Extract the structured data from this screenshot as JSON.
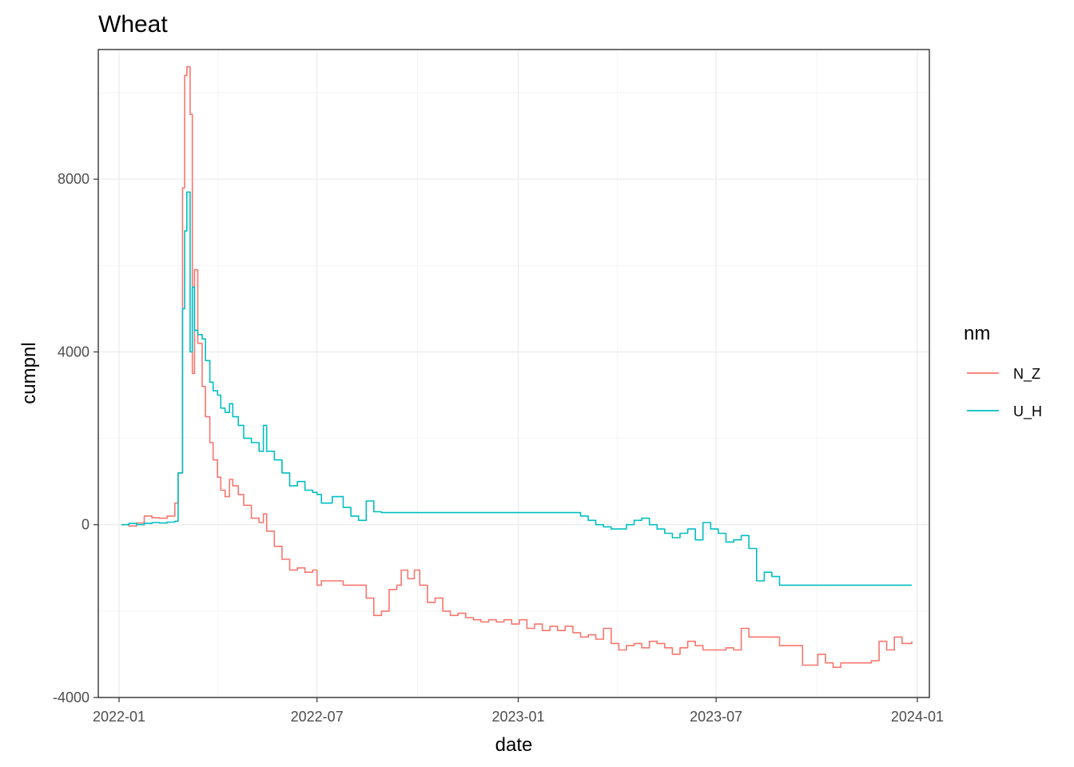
{
  "chart_data": {
    "type": "line",
    "title": "Wheat",
    "xlabel": "date",
    "ylabel": "cumpnl",
    "xlim": [
      "2021-12-13",
      "2024-01-12"
    ],
    "ylim": [
      -4000,
      11000
    ],
    "x_ticks": [
      "2022-01",
      "2022-07",
      "2023-01",
      "2023-07",
      "2024-01"
    ],
    "y_ticks": [
      -4000,
      0,
      4000,
      8000
    ],
    "grid": true,
    "legend": {
      "title": "nm",
      "position": "right"
    },
    "series": [
      {
        "name": "N_Z",
        "color": "#f8766d",
        "points": [
          [
            "2022-01-03",
            0
          ],
          [
            "2022-01-10",
            -30
          ],
          [
            "2022-01-17",
            40
          ],
          [
            "2022-01-24",
            200
          ],
          [
            "2022-01-31",
            160
          ],
          [
            "2022-02-07",
            150
          ],
          [
            "2022-02-14",
            200
          ],
          [
            "2022-02-21",
            500
          ],
          [
            "2022-02-24",
            1200
          ],
          [
            "2022-02-28",
            7800
          ],
          [
            "2022-03-02",
            10400
          ],
          [
            "2022-03-04",
            10600
          ],
          [
            "2022-03-07",
            9500
          ],
          [
            "2022-03-09",
            3500
          ],
          [
            "2022-03-11",
            5900
          ],
          [
            "2022-03-14",
            4200
          ],
          [
            "2022-03-18",
            3200
          ],
          [
            "2022-03-21",
            2500
          ],
          [
            "2022-03-25",
            1900
          ],
          [
            "2022-03-28",
            1500
          ],
          [
            "2022-04-01",
            1100
          ],
          [
            "2022-04-04",
            800
          ],
          [
            "2022-04-08",
            650
          ],
          [
            "2022-04-12",
            1050
          ],
          [
            "2022-04-15",
            900
          ],
          [
            "2022-04-20",
            700
          ],
          [
            "2022-04-25",
            450
          ],
          [
            "2022-05-02",
            150
          ],
          [
            "2022-05-09",
            50
          ],
          [
            "2022-05-13",
            250
          ],
          [
            "2022-05-16",
            -150
          ],
          [
            "2022-05-23",
            -500
          ],
          [
            "2022-05-30",
            -800
          ],
          [
            "2022-06-06",
            -1050
          ],
          [
            "2022-06-13",
            -1000
          ],
          [
            "2022-06-20",
            -1100
          ],
          [
            "2022-06-27",
            -1050
          ],
          [
            "2022-07-01",
            -1400
          ],
          [
            "2022-07-05",
            -1300
          ],
          [
            "2022-07-15",
            -1300
          ],
          [
            "2022-07-25",
            -1400
          ],
          [
            "2022-08-08",
            -1400
          ],
          [
            "2022-08-15",
            -1700
          ],
          [
            "2022-08-22",
            -2100
          ],
          [
            "2022-08-29",
            -2000
          ],
          [
            "2022-09-05",
            -1500
          ],
          [
            "2022-09-12",
            -1400
          ],
          [
            "2022-09-16",
            -1050
          ],
          [
            "2022-09-22",
            -1250
          ],
          [
            "2022-09-28",
            -1050
          ],
          [
            "2022-10-03",
            -1400
          ],
          [
            "2022-10-10",
            -1800
          ],
          [
            "2022-10-17",
            -1700
          ],
          [
            "2022-10-24",
            -2000
          ],
          [
            "2022-10-31",
            -2100
          ],
          [
            "2022-11-07",
            -2050
          ],
          [
            "2022-11-14",
            -2150
          ],
          [
            "2022-11-21",
            -2200
          ],
          [
            "2022-11-28",
            -2250
          ],
          [
            "2022-12-05",
            -2200
          ],
          [
            "2022-12-12",
            -2250
          ],
          [
            "2022-12-19",
            -2200
          ],
          [
            "2022-12-26",
            -2300
          ],
          [
            "2023-01-02",
            -2200
          ],
          [
            "2023-01-09",
            -2400
          ],
          [
            "2023-01-16",
            -2300
          ],
          [
            "2023-01-23",
            -2450
          ],
          [
            "2023-01-30",
            -2350
          ],
          [
            "2023-02-06",
            -2450
          ],
          [
            "2023-02-13",
            -2350
          ],
          [
            "2023-02-20",
            -2500
          ],
          [
            "2023-02-27",
            -2600
          ],
          [
            "2023-03-06",
            -2550
          ],
          [
            "2023-03-13",
            -2650
          ],
          [
            "2023-03-20",
            -2400
          ],
          [
            "2023-03-27",
            -2750
          ],
          [
            "2023-04-03",
            -2900
          ],
          [
            "2023-04-10",
            -2800
          ],
          [
            "2023-04-17",
            -2750
          ],
          [
            "2023-04-24",
            -2850
          ],
          [
            "2023-05-01",
            -2700
          ],
          [
            "2023-05-08",
            -2750
          ],
          [
            "2023-05-15",
            -2850
          ],
          [
            "2023-05-22",
            -3000
          ],
          [
            "2023-05-29",
            -2850
          ],
          [
            "2023-06-05",
            -2700
          ],
          [
            "2023-06-12",
            -2800
          ],
          [
            "2023-06-19",
            -2900
          ],
          [
            "2023-06-26",
            -2900
          ],
          [
            "2023-07-03",
            -2900
          ],
          [
            "2023-07-10",
            -2850
          ],
          [
            "2023-07-17",
            -2900
          ],
          [
            "2023-07-24",
            -2400
          ],
          [
            "2023-07-31",
            -2600
          ],
          [
            "2023-08-07",
            -2600
          ],
          [
            "2023-08-14",
            -2600
          ],
          [
            "2023-08-21",
            -2600
          ],
          [
            "2023-08-28",
            -2800
          ],
          [
            "2023-09-04",
            -2800
          ],
          [
            "2023-09-11",
            -2800
          ],
          [
            "2023-09-18",
            -3250
          ],
          [
            "2023-09-25",
            -3250
          ],
          [
            "2023-10-02",
            -3000
          ],
          [
            "2023-10-09",
            -3200
          ],
          [
            "2023-10-16",
            -3300
          ],
          [
            "2023-10-23",
            -3200
          ],
          [
            "2023-10-30",
            -3200
          ],
          [
            "2023-11-06",
            -3200
          ],
          [
            "2023-11-13",
            -3200
          ],
          [
            "2023-11-20",
            -3150
          ],
          [
            "2023-11-27",
            -2700
          ],
          [
            "2023-12-04",
            -2900
          ],
          [
            "2023-12-11",
            -2600
          ],
          [
            "2023-12-18",
            -2750
          ],
          [
            "2023-12-27",
            -2700
          ]
        ]
      },
      {
        "name": "U_H",
        "color": "#00bfc4",
        "points": [
          [
            "2022-01-03",
            0
          ],
          [
            "2022-01-10",
            30
          ],
          [
            "2022-01-17",
            0
          ],
          [
            "2022-01-24",
            30
          ],
          [
            "2022-01-31",
            50
          ],
          [
            "2022-02-07",
            40
          ],
          [
            "2022-02-14",
            60
          ],
          [
            "2022-02-21",
            80
          ],
          [
            "2022-02-24",
            1200
          ],
          [
            "2022-02-28",
            5000
          ],
          [
            "2022-03-02",
            6800
          ],
          [
            "2022-03-04",
            7700
          ],
          [
            "2022-03-07",
            4000
          ],
          [
            "2022-03-09",
            5500
          ],
          [
            "2022-03-11",
            4500
          ],
          [
            "2022-03-14",
            4400
          ],
          [
            "2022-03-18",
            4300
          ],
          [
            "2022-03-21",
            3800
          ],
          [
            "2022-03-25",
            3300
          ],
          [
            "2022-03-28",
            3100
          ],
          [
            "2022-04-01",
            3000
          ],
          [
            "2022-04-04",
            2700
          ],
          [
            "2022-04-08",
            2600
          ],
          [
            "2022-04-12",
            2800
          ],
          [
            "2022-04-15",
            2500
          ],
          [
            "2022-04-20",
            2300
          ],
          [
            "2022-04-25",
            2000
          ],
          [
            "2022-05-02",
            1900
          ],
          [
            "2022-05-09",
            1700
          ],
          [
            "2022-05-13",
            2300
          ],
          [
            "2022-05-16",
            1700
          ],
          [
            "2022-05-23",
            1500
          ],
          [
            "2022-05-30",
            1200
          ],
          [
            "2022-06-06",
            900
          ],
          [
            "2022-06-13",
            1000
          ],
          [
            "2022-06-20",
            800
          ],
          [
            "2022-06-27",
            750
          ],
          [
            "2022-07-01",
            700
          ],
          [
            "2022-07-05",
            500
          ],
          [
            "2022-07-15",
            650
          ],
          [
            "2022-07-25",
            400
          ],
          [
            "2022-08-01",
            200
          ],
          [
            "2022-08-08",
            100
          ],
          [
            "2022-08-15",
            550
          ],
          [
            "2022-08-22",
            300
          ],
          [
            "2022-08-29",
            280
          ],
          [
            "2022-09-15",
            280
          ],
          [
            "2022-10-15",
            280
          ],
          [
            "2022-11-15",
            280
          ],
          [
            "2022-12-15",
            280
          ],
          [
            "2023-01-15",
            280
          ],
          [
            "2023-02-20",
            280
          ],
          [
            "2023-02-27",
            200
          ],
          [
            "2023-03-06",
            100
          ],
          [
            "2023-03-13",
            0
          ],
          [
            "2023-03-20",
            -50
          ],
          [
            "2023-03-27",
            -100
          ],
          [
            "2023-04-03",
            -100
          ],
          [
            "2023-04-10",
            0
          ],
          [
            "2023-04-17",
            100
          ],
          [
            "2023-04-24",
            150
          ],
          [
            "2023-05-01",
            0
          ],
          [
            "2023-05-08",
            -100
          ],
          [
            "2023-05-15",
            -200
          ],
          [
            "2023-05-22",
            -300
          ],
          [
            "2023-05-29",
            -200
          ],
          [
            "2023-06-05",
            -100
          ],
          [
            "2023-06-12",
            -350
          ],
          [
            "2023-06-19",
            50
          ],
          [
            "2023-06-26",
            -100
          ],
          [
            "2023-07-03",
            -200
          ],
          [
            "2023-07-10",
            -400
          ],
          [
            "2023-07-17",
            -350
          ],
          [
            "2023-07-24",
            -250
          ],
          [
            "2023-07-31",
            -550
          ],
          [
            "2023-08-07",
            -1300
          ],
          [
            "2023-08-14",
            -1100
          ],
          [
            "2023-08-21",
            -1200
          ],
          [
            "2023-08-28",
            -1400
          ],
          [
            "2023-09-15",
            -1400
          ],
          [
            "2023-10-15",
            -1400
          ],
          [
            "2023-11-15",
            -1400
          ],
          [
            "2023-12-15",
            -1400
          ],
          [
            "2023-12-27",
            -1400
          ]
        ]
      }
    ]
  }
}
